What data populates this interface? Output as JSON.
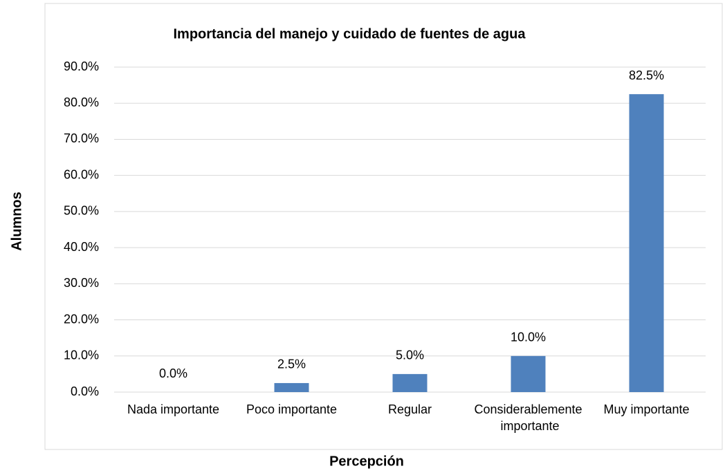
{
  "chart_data": {
    "type": "bar",
    "title": "Importancia del manejo y cuidado de fuentes de agua",
    "x_label": "Percepción",
    "y_label": "Alumnos",
    "categories": [
      "Nada importante",
      "Poco importante",
      "Regular",
      "Considerablemente importante",
      "Muy importante"
    ],
    "values": [
      0,
      2.5,
      5,
      10,
      82.5
    ],
    "value_labels": [
      "0.0%",
      "2.5%",
      "5.0%",
      "10.0%",
      "82.5%"
    ],
    "color": "#4f81bd",
    "ylim": [
      0,
      90
    ],
    "yticks": [
      {
        "value": 0,
        "label": "0.0%"
      },
      {
        "value": 10,
        "label": "10.0%"
      },
      {
        "value": 20,
        "label": "20.0%"
      },
      {
        "value": 30,
        "label": "30.0%"
      },
      {
        "value": 40,
        "label": "40.0%"
      },
      {
        "value": 50,
        "label": "50.0%"
      },
      {
        "value": 60,
        "label": "60.0%"
      },
      {
        "value": 70,
        "label": "70.0%"
      },
      {
        "value": 80,
        "label": "80.0%"
      },
      {
        "value": 90,
        "label": "90.0%"
      }
    ],
    "grid": true
  }
}
